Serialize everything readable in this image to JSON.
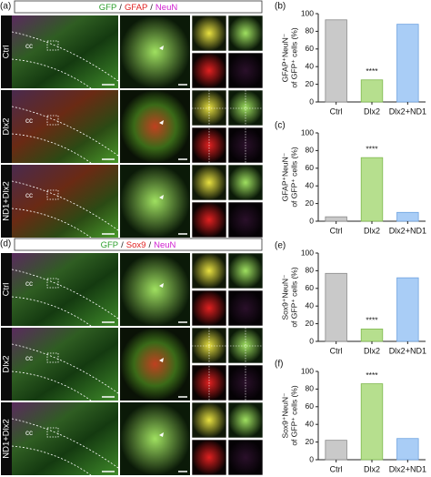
{
  "panels": {
    "a": {
      "letter": "(a)",
      "stain": [
        "GFP",
        "/",
        "GFAP",
        "/",
        "NeuN"
      ],
      "rows": [
        {
          "label": "Ctrl",
          "region": "cc"
        },
        {
          "label": "Dlx2",
          "region": "cc"
        },
        {
          "label": "ND1+Dlx2",
          "region": "cc"
        }
      ]
    },
    "d": {
      "letter": "(d)",
      "stain": [
        "GFP",
        "/",
        "Sox9",
        "/",
        "NeuN"
      ],
      "rows": [
        {
          "label": "Ctrl",
          "region": "cc"
        },
        {
          "label": "Dlx2",
          "region": "cc"
        },
        {
          "label": "ND1+Dlx2",
          "region": "cc"
        }
      ]
    }
  },
  "chart_data": [
    {
      "type": "bar",
      "panel": "(b)",
      "ylabel": [
        "GFAP⁺NeuN⁻",
        "of GFP⁺ cells (%)"
      ],
      "categories": [
        "Ctrl",
        "Dlx2",
        "Dlx2+ND1"
      ],
      "values": [
        93,
        25,
        88
      ],
      "significance": [
        null,
        "****",
        null
      ],
      "colors": [
        "#c9c9c9",
        "#b6df8e",
        "#a9cdf6"
      ],
      "edge_colors": [
        "#8a8a8a",
        "#7fb84e",
        "#6fa3e0"
      ],
      "ylim": [
        0,
        100
      ],
      "yticks": [
        0,
        20,
        40,
        60,
        80,
        100
      ]
    },
    {
      "type": "bar",
      "panel": "(c)",
      "ylabel": [
        "GFAP⁺NeuN⁻",
        "of GFP⁺ cells (%)"
      ],
      "categories": [
        "Ctrl",
        "Dlx2",
        "Dlx2+ND1"
      ],
      "values": [
        5,
        72,
        10
      ],
      "significance": [
        null,
        "****",
        null
      ],
      "colors": [
        "#c9c9c9",
        "#b6df8e",
        "#a9cdf6"
      ],
      "edge_colors": [
        "#8a8a8a",
        "#7fb84e",
        "#6fa3e0"
      ],
      "ylim": [
        0,
        100
      ],
      "yticks": [
        0,
        20,
        40,
        60,
        80,
        100
      ]
    },
    {
      "type": "bar",
      "panel": "(e)",
      "ylabel": [
        "Sox9⁺NeuN⁻",
        "of GFP⁺ cells (%)"
      ],
      "categories": [
        "Ctrl",
        "Dlx2",
        "Dlx2+ND1"
      ],
      "values": [
        77,
        14,
        72
      ],
      "significance": [
        null,
        "****",
        null
      ],
      "colors": [
        "#c9c9c9",
        "#b6df8e",
        "#a9cdf6"
      ],
      "edge_colors": [
        "#8a8a8a",
        "#7fb84e",
        "#6fa3e0"
      ],
      "ylim": [
        0,
        100
      ],
      "yticks": [
        0,
        20,
        40,
        60,
        80,
        100
      ]
    },
    {
      "type": "bar",
      "panel": "(f)",
      "ylabel": [
        "Sox9⁺NeuN⁻",
        "of GFP⁺ cells (%)"
      ],
      "categories": [
        "Ctrl",
        "Dlx2",
        "Dlx2+ND1"
      ],
      "values": [
        22,
        86,
        24
      ],
      "significance": [
        null,
        "****",
        null
      ],
      "colors": [
        "#c9c9c9",
        "#b6df8e",
        "#a9cdf6"
      ],
      "edge_colors": [
        "#8a8a8a",
        "#7fb84e",
        "#6fa3e0"
      ],
      "ylim": [
        0,
        100
      ],
      "yticks": [
        0,
        20,
        40,
        60,
        80,
        100
      ]
    }
  ]
}
